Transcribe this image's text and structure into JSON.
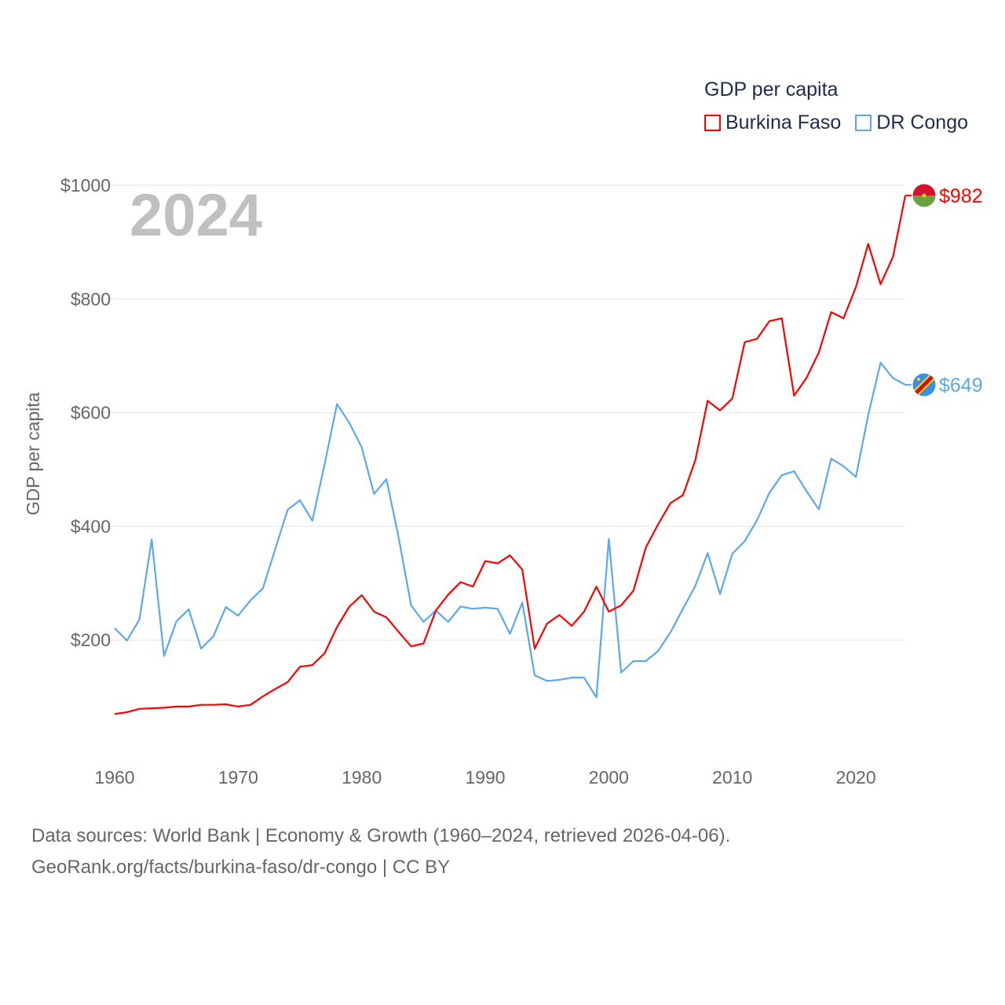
{
  "chart_data": {
    "type": "line",
    "title": "GDP per capita",
    "ylabel": "GDP per capita",
    "xlabel": "",
    "year_label": "2024",
    "ylim": [
      0,
      1000
    ],
    "xlim": [
      1960,
      2024
    ],
    "y_ticks": [
      {
        "value": 200,
        "label": "$200"
      },
      {
        "value": 400,
        "label": "$400"
      },
      {
        "value": 600,
        "label": "$600"
      },
      {
        "value": 800,
        "label": "$800"
      },
      {
        "value": 1000,
        "label": "$1000"
      }
    ],
    "x_ticks": [
      {
        "value": 1960,
        "label": "1960"
      },
      {
        "value": 1970,
        "label": "1970"
      },
      {
        "value": 1980,
        "label": "1980"
      },
      {
        "value": 1990,
        "label": "1990"
      },
      {
        "value": 2000,
        "label": "2000"
      },
      {
        "value": 2010,
        "label": "2010"
      },
      {
        "value": 2020,
        "label": "2020"
      }
    ],
    "grid": true,
    "legend_placement": "top-right",
    "x_start": 1960,
    "series": [
      {
        "name": "Burkina Faso",
        "color": "#ff0000",
        "end_label": "$982",
        "values": [
          70,
          73,
          79,
          80,
          81,
          83,
          83,
          86,
          86,
          87,
          83,
          86,
          101,
          114,
          126,
          153,
          156,
          177,
          223,
          259,
          279,
          250,
          240,
          214,
          189,
          194,
          252,
          280,
          302,
          294,
          339,
          335,
          349,
          324,
          185,
          229,
          244,
          225,
          250,
          294,
          250,
          261,
          287,
          363,
          404,
          441,
          455,
          516,
          621,
          604,
          625,
          724,
          730,
          761,
          766,
          630,
          661,
          706,
          777,
          766,
          821,
          897,
          826,
          874,
          982
        ]
      },
      {
        "name": "DR Congo",
        "color": "#5ca8ee",
        "end_label": "$649",
        "values": [
          221,
          199,
          236,
          377,
          172,
          233,
          254,
          185,
          207,
          258,
          243,
          270,
          291,
          360,
          429,
          446,
          410,
          510,
          615,
          582,
          539,
          457,
          483,
          379,
          261,
          232,
          252,
          232,
          259,
          255,
          257,
          255,
          211,
          266,
          138,
          128,
          130,
          134,
          134,
          99,
          378,
          143,
          163,
          163,
          181,
          214,
          255,
          295,
          353,
          281,
          352,
          374,
          411,
          459,
          490,
          497,
          462,
          430,
          519,
          506,
          487,
          596,
          688,
          661,
          649
        ]
      }
    ]
  },
  "footer": {
    "line1": "Data sources: World Bank | Economy & Growth (1960–2024, retrieved 2026-04-06).",
    "line2": "GeoRank.org/facts/burkina-faso/dr-congo | CC BY"
  }
}
